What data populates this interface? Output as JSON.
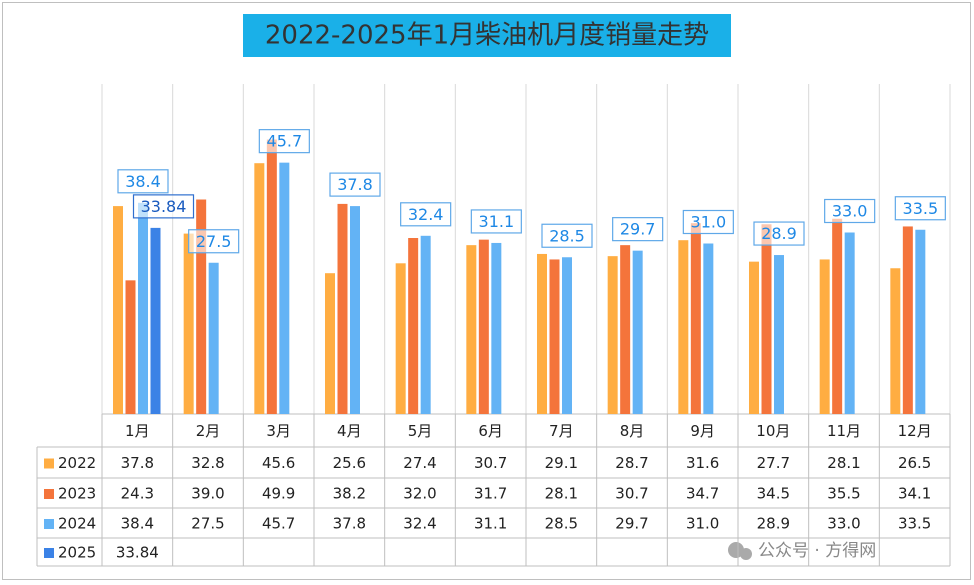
{
  "chart_data": {
    "type": "bar",
    "title": "2022-2025年1月柴油机月度销量走势",
    "categories": [
      "1月",
      "2月",
      "3月",
      "4月",
      "5月",
      "6月",
      "7月",
      "8月",
      "9月",
      "10月",
      "11月",
      "12月"
    ],
    "ylim": [
      0,
      60
    ],
    "series": [
      {
        "name": "2022",
        "color": "#ffad42",
        "show_labels": false,
        "values": [
          37.8,
          32.8,
          45.6,
          25.6,
          27.4,
          30.7,
          29.1,
          28.7,
          31.6,
          27.7,
          28.1,
          26.5
        ],
        "value_labels": [
          "37.8",
          "32.8",
          "45.6",
          "25.6",
          "27.4",
          "30.7",
          "29.1",
          "28.7",
          "31.6",
          "27.7",
          "28.1",
          "26.5"
        ]
      },
      {
        "name": "2023",
        "color": "#f4743b",
        "show_labels": false,
        "values": [
          24.3,
          39.0,
          49.9,
          38.2,
          32.0,
          31.7,
          28.1,
          30.7,
          34.7,
          34.5,
          35.5,
          34.1
        ],
        "value_labels": [
          "24.3",
          "39.0",
          "49.9",
          "38.2",
          "32.0",
          "31.7",
          "28.1",
          "30.7",
          "34.7",
          "34.5",
          "35.5",
          "34.1"
        ]
      },
      {
        "name": "2024",
        "color": "#63b3f5",
        "show_labels": true,
        "values": [
          38.4,
          27.5,
          45.7,
          37.8,
          32.4,
          31.1,
          28.5,
          29.7,
          31.0,
          28.9,
          33.0,
          33.5
        ],
        "value_labels": [
          "38.4",
          "27.5",
          "45.7",
          "37.8",
          "32.4",
          "31.1",
          "28.5",
          "29.7",
          "31.0",
          "28.9",
          "33.0",
          "33.5"
        ]
      },
      {
        "name": "2025",
        "color": "#3b82e6",
        "show_labels": true,
        "values": [
          33.84,
          null,
          null,
          null,
          null,
          null,
          null,
          null,
          null,
          null,
          null,
          null
        ],
        "value_labels": [
          "33.84",
          null,
          null,
          null,
          null,
          null,
          null,
          null,
          null,
          null,
          null,
          null
        ]
      }
    ]
  },
  "watermark": "公众号 · 方得网"
}
